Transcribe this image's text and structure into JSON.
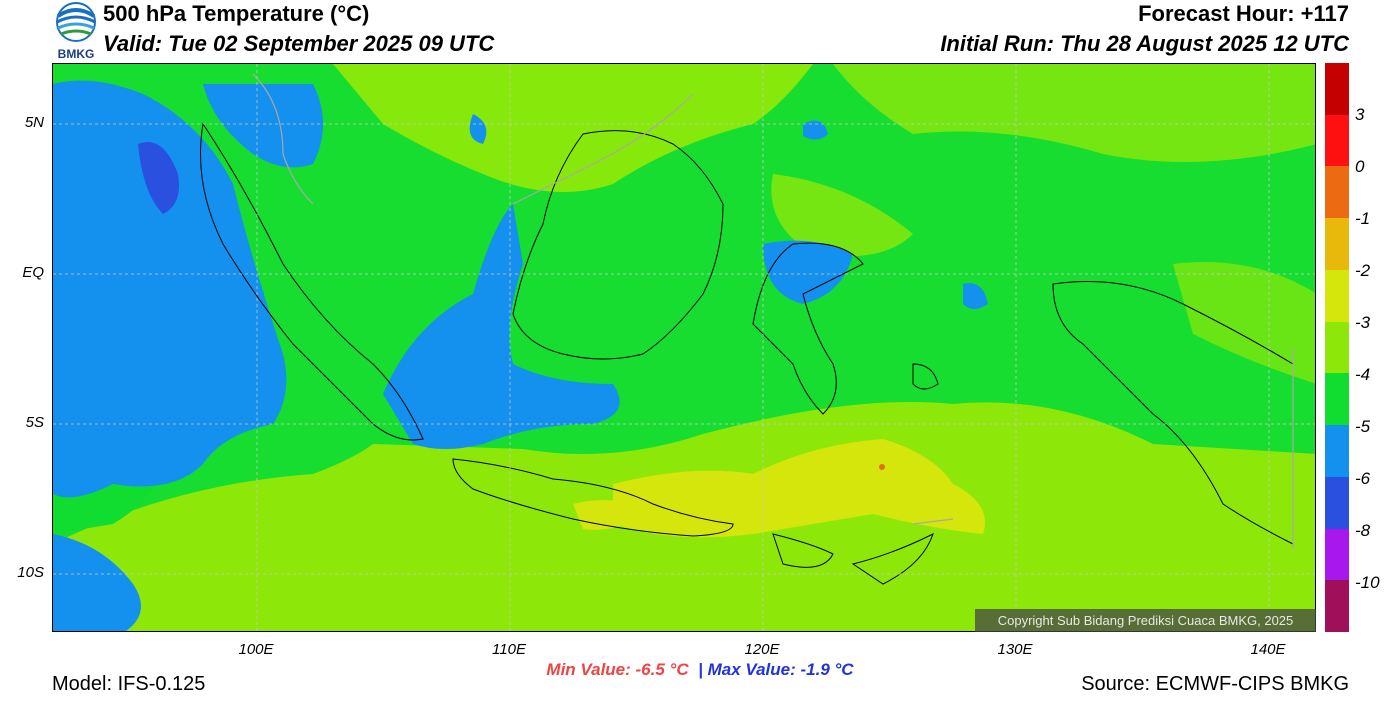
{
  "header": {
    "title": "500 hPa Temperature (°C)",
    "valid": "Valid: Tue 02 September 2025 09 UTC",
    "forecast_hour": "Forecast Hour: +117",
    "initial_run": "Initial Run: Thu 28 August 2025 12 UTC",
    "logo_text": "BMKG"
  },
  "axes": {
    "lat_labels": [
      "5N",
      "EQ",
      "5S",
      "10S"
    ],
    "lon_labels": [
      "100E",
      "110E",
      "120E",
      "130E",
      "140E"
    ]
  },
  "colorbar": {
    "labels": [
      "3",
      "0",
      "-1",
      "-2",
      "-3",
      "-4",
      "-5",
      "-6",
      "-8",
      "-10"
    ],
    "colors": [
      "#c40000",
      "#ff1010",
      "#ec6a12",
      "#e8b80a",
      "#d4e60c",
      "#8de80a",
      "#10dd30",
      "#1490ee",
      "#2a50e0",
      "#a818ee",
      "#a0105a"
    ]
  },
  "stats": {
    "min": "Min Value: -6.5 °C",
    "separator": "|",
    "max": "Max Value: -1.9 °C"
  },
  "footer": {
    "model": "Model: IFS-0.125",
    "source": "Source: ECMWF-CIPS BMKG",
    "copyright": "Copyright Sub Bidang Prediksi Cuaca BMKG, 2025"
  },
  "palette": {
    "blue_dark": "#2a50e0",
    "blue": "#1490ee",
    "green": "#10dd30",
    "yellow_green": "#8de80a",
    "yellow": "#d4e60c",
    "orange": "#ec6a12"
  }
}
